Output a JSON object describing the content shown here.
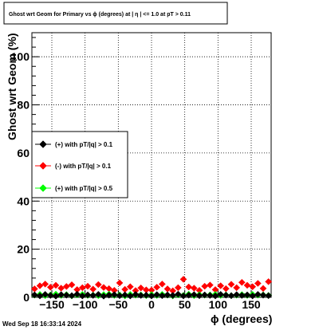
{
  "chart_data": {
    "type": "scatter",
    "title": "Ghost wrt Geom for Primary vs ϕ (degrees) at |  η | <= 1.0 at pT > 0.11",
    "xlabel": "ϕ (degrees)",
    "ylabel": "Ghost wrt Geom (%)",
    "xlim": [
      -180,
      180
    ],
    "ylim": [
      0,
      110
    ],
    "xticks": [
      -150,
      -100,
      -50,
      0,
      50,
      100,
      150
    ],
    "xtick_labels": [
      "−150",
      "−100",
      "−50",
      "0",
      "50",
      "100",
      "150"
    ],
    "yticks": [
      0,
      20,
      40,
      60,
      80,
      100
    ],
    "ytick_labels": [
      "0",
      "20",
      "40",
      "60",
      "80",
      "100"
    ],
    "grid": true,
    "legend_position": "left-middle",
    "series": [
      {
        "name": "(+) with pT/|q| > 0.1",
        "color": "#000000",
        "x": [
          -176,
          -168,
          -160,
          -152,
          -144,
          -136,
          -128,
          -120,
          -112,
          -104,
          -96,
          -88,
          -80,
          -72,
          -64,
          -56,
          -48,
          -40,
          -32,
          -24,
          -16,
          -8,
          0,
          8,
          16,
          24,
          32,
          40,
          48,
          56,
          64,
          72,
          80,
          88,
          96,
          104,
          112,
          120,
          128,
          136,
          144,
          152,
          160,
          168,
          176
        ],
        "values": [
          1.0,
          0.6,
          1.2,
          0.8,
          0.5,
          1.1,
          0.9,
          0.7,
          1.3,
          0.6,
          1.0,
          0.8,
          1.2,
          0.5,
          0.9,
          1.1,
          0.7,
          1.0,
          0.6,
          1.2,
          0.8,
          0.9,
          0.6,
          1.1,
          0.7,
          1.0,
          0.8,
          1.3,
          0.6,
          0.9,
          1.1,
          0.7,
          1.0,
          0.8,
          0.6,
          1.2,
          0.9,
          0.7,
          1.1,
          0.8,
          1.0,
          0.6,
          1.2,
          0.9,
          0.7
        ]
      },
      {
        "name": "(-) with pT/|q| > 0.1",
        "color": "#ff0000",
        "x": [
          -176,
          -168,
          -160,
          -152,
          -144,
          -136,
          -128,
          -120,
          -112,
          -104,
          -96,
          -88,
          -80,
          -72,
          -64,
          -56,
          -48,
          -40,
          -32,
          -24,
          -16,
          -8,
          0,
          8,
          16,
          24,
          32,
          40,
          48,
          56,
          64,
          72,
          80,
          88,
          96,
          104,
          112,
          120,
          128,
          136,
          144,
          152,
          160,
          168,
          176
        ],
        "values": [
          3.5,
          4.8,
          5.5,
          4.2,
          5.0,
          3.8,
          4.5,
          5.2,
          3.2,
          4.0,
          4.6,
          3.4,
          5.3,
          4.1,
          3.6,
          2.9,
          6.0,
          3.3,
          4.4,
          2.8,
          3.9,
          3.1,
          3.0,
          4.2,
          5.5,
          3.5,
          2.7,
          4.0,
          7.5,
          4.3,
          3.8,
          2.9,
          4.6,
          5.1,
          3.2,
          4.8,
          3.6,
          5.4,
          4.0,
          6.2,
          5.0,
          4.4,
          5.8,
          3.7,
          6.5
        ]
      },
      {
        "name": "(+) with pT/|q| > 0.5",
        "color": "#00ff00",
        "x": [
          -176,
          -168,
          -160,
          -152,
          -144,
          -136,
          -128,
          -120,
          -112,
          -104,
          -96,
          -88,
          -80,
          -72,
          -64,
          -56,
          -48,
          -40,
          -32,
          -24,
          -16,
          -8,
          0,
          8,
          16,
          24,
          32,
          40,
          48,
          56,
          64,
          72,
          80,
          88,
          96,
          104,
          112,
          120,
          128,
          136,
          144,
          152,
          160,
          168,
          176
        ],
        "values": [
          0.9,
          1.2,
          0.7,
          1.0,
          1.3,
          0.8,
          1.1,
          0.6,
          1.0,
          1.2,
          0.8,
          0.9,
          0.7,
          1.1,
          1.3,
          0.8,
          1.0,
          0.6,
          1.2,
          0.9,
          1.0,
          0.7,
          1.1,
          0.8,
          1.2,
          0.9,
          0.6,
          1.0,
          0.8,
          1.3,
          0.7,
          1.1,
          0.9,
          1.0,
          1.2,
          0.8,
          1.0,
          0.7,
          0.9,
          1.1,
          0.8,
          1.2,
          0.9,
          1.0,
          0.8
        ]
      }
    ]
  },
  "footer": {
    "timestamp": "Wed Sep 18 16:33:14 2024"
  }
}
